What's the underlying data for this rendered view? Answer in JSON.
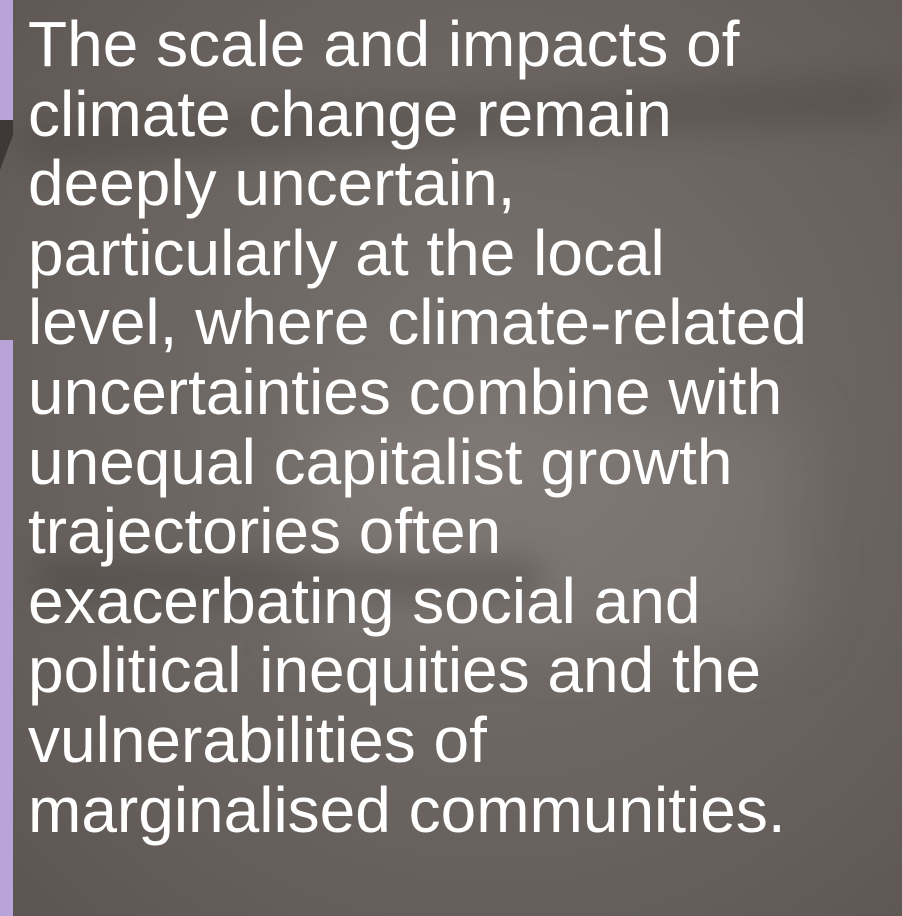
{
  "body": {
    "lines": [
      "The scale and impacts of",
      "climate change remain",
      "deeply uncertain,",
      "particularly at the local",
      "level, where climate-related",
      "uncertainties combine with",
      "unequal capitalist growth",
      "trajectories often",
      "exacerbating social and",
      "political inequities and the",
      "vulnerabilities of",
      "marginalised communities."
    ]
  }
}
